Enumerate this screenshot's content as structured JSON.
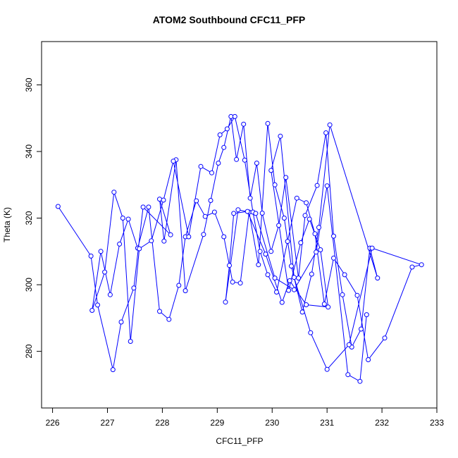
{
  "chart_data": {
    "type": "line",
    "title": "ATOM2 Southbound CFC11_PFP",
    "xlabel": "CFC11_PFP",
    "ylabel": "Theta (K)",
    "xlim": [
      225.8,
      233.0
    ],
    "ylim": [
      263.0,
      373.0
    ],
    "xticks": [
      226,
      227,
      228,
      229,
      230,
      231,
      232,
      233
    ],
    "yticks": [
      280,
      300,
      320,
      340,
      360
    ],
    "grid": false,
    "line_color": "#0000ff",
    "marker": "open-circle",
    "series": [
      {
        "x": [
          226.1,
          226.7,
          226.82,
          227.1,
          227.25,
          227.48,
          227.65,
          228.15,
          227.95,
          228.03,
          228.25,
          228.42,
          228.75,
          228.88,
          229.02,
          229.12,
          229.25,
          229.35,
          229.48,
          229.6,
          229.72,
          229.82,
          229.98,
          230.12,
          230.25,
          230.48,
          230.6,
          230.82,
          230.98,
          231.12,
          231.28,
          231.45,
          231.62,
          231.78,
          231.92,
          231.05,
          230.85,
          230.72,
          230.55,
          230.35,
          230.22,
          230.05,
          229.92,
          229.75,
          229.58,
          229.42,
          229.28,
          229.12,
          228.95,
          228.78,
          228.62,
          228.42,
          228.3,
          228.12,
          227.95,
          227.75,
          227.55,
          227.38,
          227.22,
          227.05,
          226.88,
          226.72,
          226.95,
          227.12,
          227.28,
          227.42,
          227.58,
          227.8,
          228.02,
          228.2,
          228.48,
          228.7,
          228.9,
          229.05,
          229.18,
          229.32,
          229.5,
          229.65,
          229.78,
          229.92,
          230.08,
          230.28,
          230.45,
          230.62,
          230.78,
          230.95,
          231.12,
          231.32,
          231.55,
          231.75,
          232.05,
          232.55,
          232.72,
          231.82,
          231.4,
          231.0,
          230.7,
          230.4,
          230.15,
          229.98,
          230.3,
          230.52,
          230.68,
          230.88,
          231.02,
          230.62,
          230.32,
          230.18,
          229.88,
          229.55,
          229.3,
          229.22,
          229.15,
          229.38,
          229.7,
          230.05,
          230.4,
          230.8,
          231.0,
          231.38,
          231.6,
          231.72
        ],
        "y": [
          323.5,
          308.6,
          293.9,
          274.5,
          288.8,
          299.0,
          323.3,
          315.0,
          325.7,
          313.1,
          337.5,
          298.2,
          315.1,
          325.3,
          336.5,
          341.2,
          350.5,
          337.6,
          348.2,
          326.0,
          336.5,
          321.5,
          310.0,
          317.8,
          332.2,
          302.0,
          320.8,
          329.8,
          345.6,
          314.6,
          297.0,
          281.3,
          286.7,
          311.0,
          302.0,
          348.0,
          317.2,
          303.2,
          291.8,
          305.6,
          320.0,
          330.0,
          348.4,
          306.0,
          321.8,
          300.5,
          300.8,
          314.4,
          321.8,
          320.5,
          325.2,
          314.4,
          299.8,
          289.6,
          292.0,
          323.3,
          311.0,
          319.7,
          312.2,
          297.0,
          310.0,
          292.3,
          303.8,
          327.8,
          320.0,
          283.0,
          310.8,
          313.2,
          325.4,
          337.1,
          314.4,
          335.5,
          333.6,
          345.0,
          346.8,
          350.5,
          337.4,
          321.8,
          310.0,
          303.0,
          297.8,
          313.0,
          326.0,
          324.6,
          315.3,
          294.2,
          308.0,
          303.0,
          296.8,
          277.5,
          284.0,
          305.3,
          306.0,
          311.0,
          282.0,
          274.6,
          285.6,
          302.2,
          344.6,
          334.3,
          298.3,
          312.6,
          319.7,
          310.5,
          293.3,
          294.0,
          301.2,
          294.7,
          309.2,
          322.0,
          321.4,
          305.8,
          294.8,
          322.5,
          321.4,
          302.0,
          298.5,
          309.8,
          329.7,
          273.0,
          271.0,
          291.0
        ]
      }
    ]
  }
}
